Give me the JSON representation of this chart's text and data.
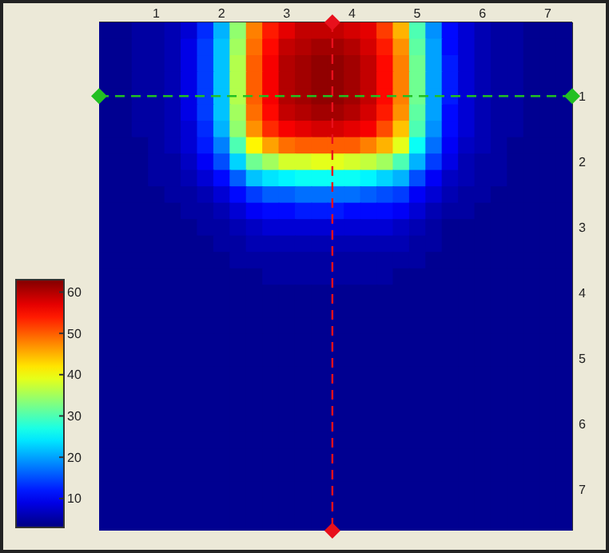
{
  "chart_data": {
    "type": "heatmap",
    "categories": [
      null,
      null,
      null,
      "1",
      null,
      null,
      null,
      "2",
      null,
      null,
      null,
      "3",
      null,
      null,
      null,
      "4",
      null,
      null,
      null,
      "5",
      null,
      null,
      null,
      "6",
      null,
      null,
      null,
      "7",
      null
    ],
    "y_categories": [
      null,
      null,
      null,
      null,
      "1",
      null,
      null,
      null,
      "2",
      null,
      null,
      null,
      "3",
      null,
      null,
      null,
      "4",
      null,
      null,
      null,
      "5",
      null,
      null,
      null,
      "6",
      null,
      null,
      null,
      "7",
      null,
      null
    ],
    "cells": [
      [
        4,
        4,
        5,
        5,
        6,
        8,
        13,
        21,
        34,
        48,
        54,
        57,
        59,
        59,
        59,
        58,
        57,
        52,
        45,
        30,
        19,
        11,
        8,
        6,
        5,
        5,
        4,
        4,
        4
      ],
      [
        4,
        4,
        5,
        5,
        6,
        9,
        14,
        22,
        35,
        49,
        55,
        59,
        60,
        61,
        61,
        60,
        58,
        54,
        47,
        31,
        20,
        11,
        8,
        6,
        5,
        5,
        4,
        4,
        4
      ],
      [
        4,
        4,
        5,
        5,
        6,
        9,
        14,
        22,
        36,
        50,
        56,
        60,
        61,
        62,
        62,
        61,
        59,
        55,
        48,
        32,
        20,
        12,
        8,
        6,
        5,
        5,
        4,
        4,
        4
      ],
      [
        4,
        4,
        5,
        5,
        6,
        9,
        14,
        22,
        36,
        50,
        56,
        60,
        61,
        62,
        62,
        61,
        59,
        55,
        48,
        32,
        20,
        12,
        8,
        6,
        5,
        5,
        4,
        4,
        4
      ],
      [
        4,
        4,
        5,
        5,
        6,
        9,
        14,
        22,
        36,
        50,
        56,
        60,
        61,
        62,
        62,
        61,
        59,
        55,
        48,
        32,
        20,
        12,
        8,
        6,
        5,
        5,
        4,
        4,
        4
      ],
      [
        4,
        4,
        5,
        5,
        6,
        9,
        14,
        22,
        35,
        49,
        55,
        59,
        60,
        61,
        61,
        60,
        58,
        54,
        47,
        31,
        20,
        11,
        8,
        6,
        5,
        5,
        4,
        4,
        4
      ],
      [
        4,
        4,
        5,
        5,
        6,
        8,
        13,
        21,
        34,
        47,
        53,
        56,
        57,
        58,
        58,
        57,
        56,
        51,
        44,
        30,
        19,
        11,
        8,
        6,
        5,
        5,
        4,
        4,
        4
      ],
      [
        4,
        4,
        4,
        5,
        6,
        8,
        12,
        18,
        30,
        41,
        46,
        49,
        50,
        50,
        50,
        50,
        48,
        45,
        39,
        26,
        17,
        10,
        7,
        6,
        5,
        4,
        4,
        4,
        4
      ],
      [
        4,
        4,
        4,
        5,
        5,
        7,
        10,
        15,
        23,
        32,
        35,
        38,
        38,
        39,
        39,
        38,
        37,
        35,
        30,
        21,
        14,
        9,
        6,
        5,
        5,
        4,
        4,
        4,
        4
      ],
      [
        4,
        4,
        4,
        5,
        5,
        6,
        8,
        11,
        16,
        22,
        24,
        25,
        26,
        26,
        26,
        26,
        25,
        23,
        21,
        15,
        10,
        7,
        6,
        5,
        5,
        4,
        4,
        4,
        4
      ],
      [
        4,
        4,
        4,
        4,
        5,
        5,
        6,
        8,
        11,
        14,
        16,
        16,
        17,
        17,
        17,
        17,
        16,
        15,
        14,
        10,
        8,
        6,
        5,
        5,
        4,
        4,
        4,
        4,
        4
      ],
      [
        4,
        4,
        4,
        4,
        4,
        5,
        5,
        6,
        8,
        10,
        11,
        11,
        12,
        12,
        12,
        11,
        11,
        11,
        10,
        8,
        6,
        5,
        5,
        4,
        4,
        4,
        4,
        4,
        4
      ],
      [
        4,
        4,
        4,
        4,
        4,
        4,
        5,
        5,
        6,
        7,
        8,
        8,
        8,
        8,
        8,
        8,
        8,
        8,
        7,
        6,
        5,
        4,
        4,
        4,
        4,
        4,
        4,
        4,
        4
      ],
      [
        4,
        4,
        4,
        4,
        4,
        4,
        4,
        5,
        5,
        6,
        6,
        6,
        6,
        6,
        6,
        6,
        6,
        6,
        6,
        5,
        5,
        4,
        4,
        4,
        4,
        4,
        4,
        4,
        4
      ],
      [
        4,
        4,
        4,
        4,
        4,
        4,
        4,
        4,
        5,
        5,
        5,
        5,
        5,
        5,
        5,
        5,
        5,
        5,
        5,
        5,
        4,
        4,
        4,
        4,
        4,
        4,
        4,
        4,
        4
      ],
      [
        4,
        4,
        4,
        4,
        4,
        4,
        4,
        4,
        4,
        4,
        5,
        5,
        5,
        5,
        5,
        5,
        5,
        5,
        4,
        4,
        4,
        4,
        4,
        4,
        4,
        4,
        4,
        4,
        4
      ],
      [
        4,
        4,
        4,
        4,
        4,
        4,
        4,
        4,
        4,
        4,
        4,
        4,
        4,
        4,
        4,
        4,
        4,
        4,
        4,
        4,
        4,
        4,
        4,
        4,
        4,
        4,
        4,
        4,
        4
      ],
      [
        4,
        4,
        4,
        4,
        4,
        4,
        4,
        4,
        4,
        4,
        4,
        4,
        4,
        4,
        4,
        4,
        4,
        4,
        4,
        4,
        4,
        4,
        4,
        4,
        4,
        4,
        4,
        4,
        4
      ],
      [
        4,
        4,
        4,
        4,
        4,
        4,
        4,
        4,
        4,
        4,
        4,
        4,
        4,
        4,
        4,
        4,
        4,
        4,
        4,
        4,
        4,
        4,
        4,
        4,
        4,
        4,
        4,
        4,
        4
      ],
      [
        4,
        4,
        4,
        4,
        4,
        4,
        4,
        4,
        4,
        4,
        4,
        4,
        4,
        4,
        4,
        4,
        4,
        4,
        4,
        4,
        4,
        4,
        4,
        4,
        4,
        4,
        4,
        4,
        4
      ],
      [
        4,
        4,
        4,
        4,
        4,
        4,
        4,
        4,
        4,
        4,
        4,
        4,
        4,
        4,
        4,
        4,
        4,
        4,
        4,
        4,
        4,
        4,
        4,
        4,
        4,
        4,
        4,
        4,
        4
      ],
      [
        4,
        4,
        4,
        4,
        4,
        4,
        4,
        4,
        4,
        4,
        4,
        4,
        4,
        4,
        4,
        4,
        4,
        4,
        4,
        4,
        4,
        4,
        4,
        4,
        4,
        4,
        4,
        4,
        4
      ],
      [
        4,
        4,
        4,
        4,
        4,
        4,
        4,
        4,
        4,
        4,
        4,
        4,
        4,
        4,
        4,
        4,
        4,
        4,
        4,
        4,
        4,
        4,
        4,
        4,
        4,
        4,
        4,
        4,
        4
      ],
      [
        4,
        4,
        4,
        4,
        4,
        4,
        4,
        4,
        4,
        4,
        4,
        4,
        4,
        4,
        4,
        4,
        4,
        4,
        4,
        4,
        4,
        4,
        4,
        4,
        4,
        4,
        4,
        4,
        4
      ],
      [
        4,
        4,
        4,
        4,
        4,
        4,
        4,
        4,
        4,
        4,
        4,
        4,
        4,
        4,
        4,
        4,
        4,
        4,
        4,
        4,
        4,
        4,
        4,
        4,
        4,
        4,
        4,
        4,
        4
      ],
      [
        4,
        4,
        4,
        4,
        4,
        4,
        4,
        4,
        4,
        4,
        4,
        4,
        4,
        4,
        4,
        4,
        4,
        4,
        4,
        4,
        4,
        4,
        4,
        4,
        4,
        4,
        4,
        4,
        4
      ],
      [
        4,
        4,
        4,
        4,
        4,
        4,
        4,
        4,
        4,
        4,
        4,
        4,
        4,
        4,
        4,
        4,
        4,
        4,
        4,
        4,
        4,
        4,
        4,
        4,
        4,
        4,
        4,
        4,
        4
      ],
      [
        4,
        4,
        4,
        4,
        4,
        4,
        4,
        4,
        4,
        4,
        4,
        4,
        4,
        4,
        4,
        4,
        4,
        4,
        4,
        4,
        4,
        4,
        4,
        4,
        4,
        4,
        4,
        4,
        4
      ],
      [
        4,
        4,
        4,
        4,
        4,
        4,
        4,
        4,
        4,
        4,
        4,
        4,
        4,
        4,
        4,
        4,
        4,
        4,
        4,
        4,
        4,
        4,
        4,
        4,
        4,
        4,
        4,
        4,
        4
      ],
      [
        4,
        4,
        4,
        4,
        4,
        4,
        4,
        4,
        4,
        4,
        4,
        4,
        4,
        4,
        4,
        4,
        4,
        4,
        4,
        4,
        4,
        4,
        4,
        4,
        4,
        4,
        4,
        4,
        4
      ],
      [
        4,
        4,
        4,
        4,
        4,
        4,
        4,
        4,
        4,
        4,
        4,
        4,
        4,
        4,
        4,
        4,
        4,
        4,
        4,
        4,
        4,
        4,
        4,
        4,
        4,
        4,
        4,
        4,
        4
      ]
    ],
    "clim": [
      3,
      63
    ],
    "cticks": [
      10,
      20,
      30,
      40,
      50,
      60
    ],
    "ref_lines": [
      {
        "axis": "y",
        "value": "1",
        "color": "#22c022",
        "line_style": "dashed"
      }
    ]
  }
}
